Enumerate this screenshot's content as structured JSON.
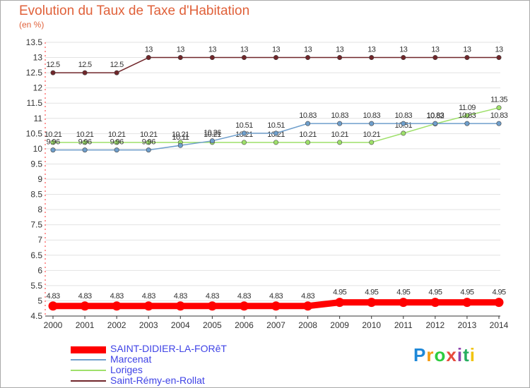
{
  "chart_data": {
    "type": "line",
    "title": "Evolution du Taux de Taxe d'Habitation",
    "ylabel": "(en %)",
    "xlabel": "",
    "ylim": [
      4.5,
      13.5
    ],
    "yticks": [
      "4.5",
      "5",
      "5.5",
      "6",
      "6.5",
      "7",
      "7.5",
      "8",
      "8.5",
      "9",
      "9.5",
      "10",
      "10.5",
      "11",
      "11.5",
      "12",
      "12.5",
      "13",
      "13.5"
    ],
    "categories": [
      "2000",
      "2001",
      "2002",
      "2003",
      "2004",
      "2005",
      "2006",
      "2007",
      "2008",
      "2009",
      "2010",
      "2011",
      "2012",
      "2013",
      "2014"
    ],
    "grid": true,
    "series": [
      {
        "name": "Saint-Rémy-en-Rollat",
        "color": "#70262a",
        "values": [
          12.5,
          12.5,
          12.5,
          13,
          13,
          13,
          13,
          13,
          13,
          13,
          13,
          13,
          13,
          13,
          13
        ],
        "labels": [
          "12.5",
          "12.5",
          "12.5",
          "13",
          "13",
          "13",
          "13",
          "13",
          "13",
          "13",
          "13",
          "13",
          "13",
          "13",
          "13"
        ]
      },
      {
        "name": "Loriges",
        "color": "#9ee06a",
        "values": [
          10.21,
          10.21,
          10.21,
          10.21,
          10.21,
          10.21,
          10.21,
          10.21,
          10.21,
          10.21,
          10.21,
          10.51,
          10.82,
          11.09,
          11.35
        ],
        "labels": [
          "10.21",
          "10.21",
          "10.21",
          "10.21",
          "10.21",
          "10.21",
          "10.21",
          "10.21",
          "10.21",
          "10.21",
          "10.21",
          "10.51",
          "10.82",
          "11.09",
          "11.35"
        ]
      },
      {
        "name": "Marcenat",
        "color": "#6f9fcc",
        "values": [
          9.96,
          9.96,
          9.96,
          9.96,
          10.11,
          10.26,
          10.51,
          10.51,
          10.83,
          10.83,
          10.83,
          10.83,
          10.83,
          10.83,
          10.83
        ],
        "labels": [
          "9.96",
          "9.96",
          "9.96",
          "9.96",
          "10.11",
          "10.26",
          "10.51",
          "10.51",
          "10.83",
          "10.83",
          "10.83",
          "10.83",
          "10.83",
          "10.83",
          "10.83"
        ]
      },
      {
        "name": "SAINT-DIDIER-LA-FORêT",
        "color": "#ff0000",
        "values": [
          4.83,
          4.83,
          4.83,
          4.83,
          4.83,
          4.83,
          4.83,
          4.83,
          4.83,
          4.95,
          4.95,
          4.95,
          4.95,
          4.95,
          4.95
        ],
        "labels": [
          "4.83",
          "4.83",
          "4.83",
          "4.83",
          "4.83",
          "4.83",
          "4.83",
          "4.83",
          "4.83",
          "4.95",
          "4.95",
          "4.95",
          "4.95",
          "4.95",
          "4.95"
        ]
      }
    ],
    "legend": [
      "SAINT-DIDIER-LA-FORêT",
      "Marcenat",
      "Loriges",
      "Saint-Rémy-en-Rollat"
    ]
  },
  "legend_colors": [
    "#ff0000",
    "#6f9fcc",
    "#9ee06a",
    "#70262a"
  ],
  "brand": {
    "text": "Proxiti",
    "colors": [
      "#1e88d8",
      "#f39c12",
      "#2ecc40",
      "#e74c3c",
      "#8e44ad",
      "#27ae60",
      "#f1c40f"
    ]
  }
}
